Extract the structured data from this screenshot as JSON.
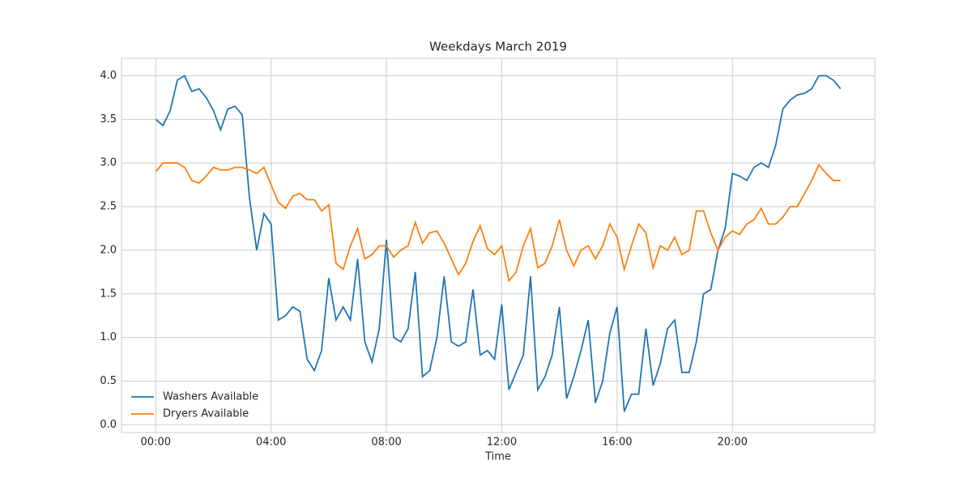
{
  "chart_data": {
    "type": "line",
    "title": "Weekdays March 2019",
    "x_label": "Time",
    "x": [
      "00:00",
      "00:15",
      "00:30",
      "00:45",
      "01:00",
      "01:15",
      "01:30",
      "01:45",
      "02:00",
      "02:15",
      "02:30",
      "02:45",
      "03:00",
      "03:15",
      "03:30",
      "03:45",
      "04:00",
      "04:15",
      "04:30",
      "04:45",
      "05:00",
      "05:15",
      "05:30",
      "05:45",
      "06:00",
      "06:15",
      "06:30",
      "06:45",
      "07:00",
      "07:15",
      "07:30",
      "07:45",
      "08:00",
      "08:15",
      "08:30",
      "08:45",
      "09:00",
      "09:15",
      "09:30",
      "09:45",
      "10:00",
      "10:15",
      "10:30",
      "10:45",
      "11:00",
      "11:15",
      "11:30",
      "11:45",
      "12:00",
      "12:15",
      "12:30",
      "12:45",
      "13:00",
      "13:15",
      "13:30",
      "13:45",
      "14:00",
      "14:15",
      "14:30",
      "14:45",
      "15:00",
      "15:15",
      "15:30",
      "15:45",
      "16:00",
      "16:15",
      "16:30",
      "16:45",
      "17:00",
      "17:15",
      "17:30",
      "17:45",
      "18:00",
      "18:15",
      "18:30",
      "18:45",
      "19:00",
      "19:15",
      "19:30",
      "19:45",
      "20:00",
      "20:15",
      "20:30",
      "20:45",
      "21:00",
      "21:15",
      "21:30",
      "21:45",
      "22:00",
      "22:15",
      "22:30",
      "22:45",
      "23:00",
      "23:15",
      "23:30",
      "23:45"
    ],
    "series": [
      {
        "name": "Washers Available",
        "color": "#1f77b4",
        "values": [
          3.5,
          3.43,
          3.6,
          3.95,
          4.0,
          3.82,
          3.85,
          3.75,
          3.6,
          3.38,
          3.62,
          3.65,
          3.55,
          2.6,
          2.0,
          2.42,
          2.3,
          1.2,
          1.25,
          1.35,
          1.3,
          0.75,
          0.62,
          0.85,
          1.68,
          1.2,
          1.35,
          1.2,
          1.9,
          0.95,
          0.72,
          1.1,
          2.12,
          1.0,
          0.95,
          1.1,
          1.75,
          0.55,
          0.62,
          1.0,
          1.7,
          0.95,
          0.9,
          0.95,
          1.55,
          0.8,
          0.85,
          0.75,
          1.38,
          0.4,
          0.6,
          0.8,
          1.7,
          0.4,
          0.55,
          0.8,
          1.35,
          0.3,
          0.55,
          0.85,
          1.2,
          0.25,
          0.5,
          1.05,
          1.35,
          0.15,
          0.35,
          0.35,
          1.1,
          0.45,
          0.7,
          1.1,
          1.2,
          0.6,
          0.6,
          0.95,
          1.5,
          1.55,
          2.0,
          2.25,
          2.88,
          2.85,
          2.8,
          2.95,
          3.0,
          2.95,
          3.2,
          3.62,
          3.72,
          3.78,
          3.8,
          3.85,
          4.0,
          4.0,
          3.95,
          3.85
        ]
      },
      {
        "name": "Dryers Available",
        "color": "#ff7f0e",
        "values": [
          2.9,
          3.0,
          3.0,
          3.0,
          2.95,
          2.8,
          2.77,
          2.85,
          2.95,
          2.92,
          2.92,
          2.95,
          2.95,
          2.92,
          2.88,
          2.95,
          2.75,
          2.55,
          2.48,
          2.62,
          2.65,
          2.58,
          2.58,
          2.45,
          2.52,
          1.85,
          1.78,
          2.05,
          2.25,
          1.9,
          1.95,
          2.05,
          2.05,
          1.92,
          2.0,
          2.05,
          2.32,
          2.08,
          2.2,
          2.22,
          2.08,
          1.9,
          1.72,
          1.85,
          2.1,
          2.28,
          2.02,
          1.95,
          2.05,
          1.65,
          1.75,
          2.05,
          2.25,
          1.8,
          1.85,
          2.05,
          2.35,
          2.0,
          1.82,
          2.0,
          2.05,
          1.9,
          2.05,
          2.3,
          2.15,
          1.78,
          2.05,
          2.3,
          2.2,
          1.8,
          2.05,
          2.0,
          2.15,
          1.95,
          2.0,
          2.45,
          2.45,
          2.2,
          2.0,
          2.15,
          2.22,
          2.18,
          2.3,
          2.35,
          2.48,
          2.3,
          2.3,
          2.38,
          2.5,
          2.5,
          2.65,
          2.8,
          2.98,
          2.88,
          2.8,
          2.8
        ]
      }
    ],
    "xticks": [
      "00:00",
      "04:00",
      "08:00",
      "12:00",
      "16:00",
      "20:00"
    ],
    "ylim": [
      -0.09,
      4.2
    ],
    "yticks": [
      {
        "value": 0,
        "label": "0.0"
      },
      {
        "value": 0.5,
        "label": "0.5"
      },
      {
        "value": 1,
        "label": "1.0"
      },
      {
        "value": 1.5,
        "label": "1.5"
      },
      {
        "value": 2,
        "label": "2.0"
      },
      {
        "value": 2.5,
        "label": "2.5"
      },
      {
        "value": 3,
        "label": "3.0"
      },
      {
        "value": 3.5,
        "label": "3.5"
      },
      {
        "value": 4,
        "label": "4.0"
      }
    ],
    "grid": true,
    "legend": "lower left"
  }
}
